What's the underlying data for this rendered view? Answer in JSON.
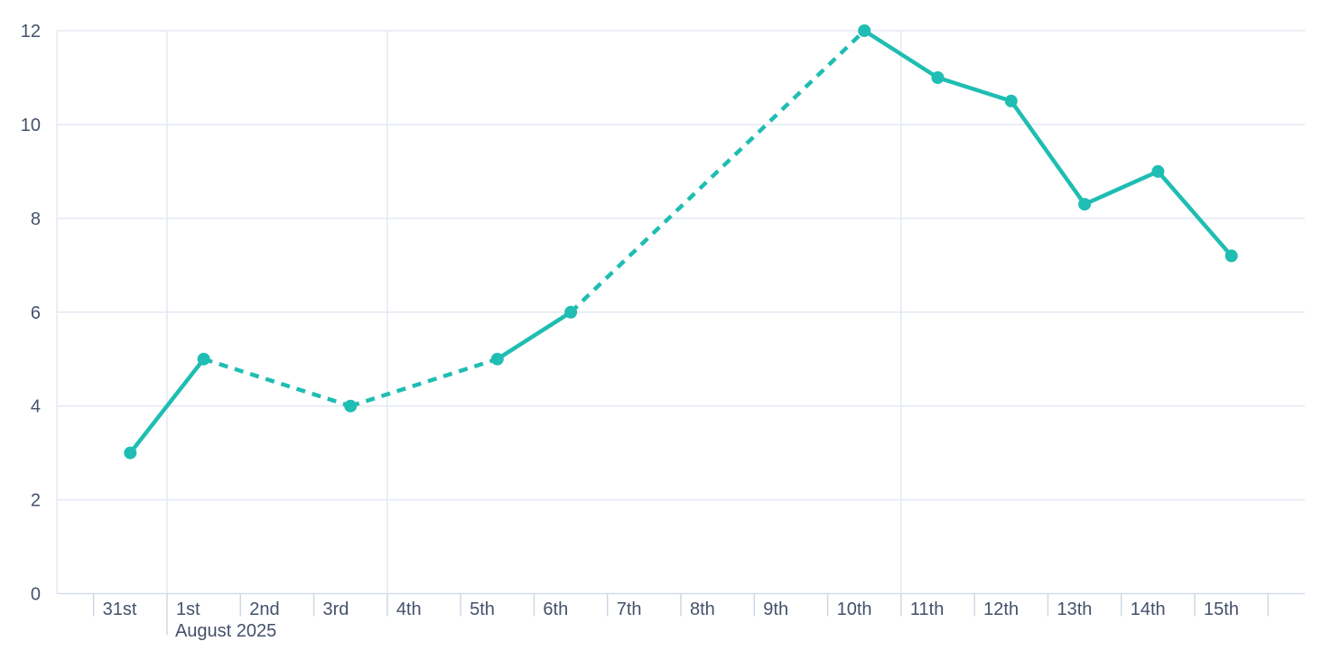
{
  "page": {
    "background": "#ffffff"
  },
  "chart_data": {
    "type": "line",
    "title": "",
    "xlabel": "",
    "ylabel": "",
    "categories": [
      "31st",
      "1st",
      "2nd",
      "3rd",
      "4th",
      "5th",
      "6th",
      "7th",
      "8th",
      "9th",
      "10th",
      "11th",
      "12th",
      "13th",
      "14th",
      "15th"
    ],
    "month_label": {
      "text": "August 2025",
      "at_category": "1st"
    },
    "y_ticks": [
      0,
      2,
      4,
      6,
      8,
      10,
      12
    ],
    "ylim": [
      0,
      12
    ],
    "grid": {
      "horizontal": true,
      "left_border": true,
      "vertical_gridline_categories": [
        "1st",
        "4th",
        "11th"
      ]
    },
    "legend": "none",
    "points": [
      {
        "category": "31st",
        "value": 3
      },
      {
        "category": "1st",
        "value": 5
      },
      {
        "category": "3rd",
        "value": 4
      },
      {
        "category": "5th",
        "value": 5
      },
      {
        "category": "6th",
        "value": 6
      },
      {
        "category": "10th",
        "value": 12
      },
      {
        "category": "11th",
        "value": 11
      },
      {
        "category": "12th",
        "value": 10.5
      },
      {
        "category": "13th",
        "value": 8.3
      },
      {
        "category": "14th",
        "value": 9
      },
      {
        "category": "15th",
        "value": 7.2
      }
    ],
    "segments": [
      {
        "from": "31st",
        "to": "1st",
        "style": "solid"
      },
      {
        "from": "1st",
        "to": "3rd",
        "style": "dashed"
      },
      {
        "from": "3rd",
        "to": "5th",
        "style": "dashed"
      },
      {
        "from": "5th",
        "to": "6th",
        "style": "solid"
      },
      {
        "from": "6th",
        "to": "10th",
        "style": "dashed"
      },
      {
        "from": "10th",
        "to": "15th",
        "style": "solid"
      }
    ],
    "colors": {
      "line": "#1fbdb2",
      "grid": "#e3e8f2",
      "axis": "#d6dde9",
      "tick": "#cfd7e4",
      "label": "#44516b",
      "background": "#ffffff"
    }
  }
}
